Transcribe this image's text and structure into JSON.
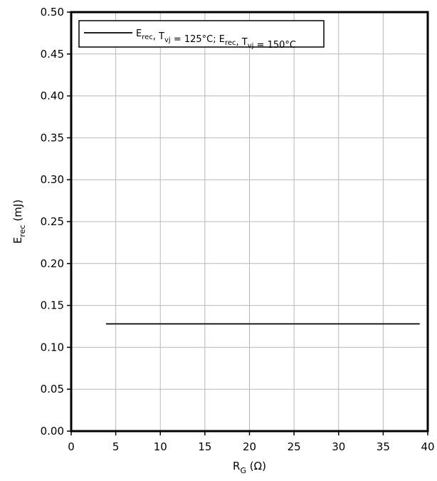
{
  "chart_data": {
    "type": "line",
    "xlabel": {
      "main": "R",
      "sub": "G",
      "rest": " (Ω)"
    },
    "ylabel": {
      "main": "E",
      "sub": "rec",
      "rest": " (mJ)"
    },
    "xlim": [
      0,
      40
    ],
    "ylim": [
      0,
      0.5
    ],
    "x_ticks": [
      0,
      5,
      10,
      15,
      20,
      25,
      30,
      35,
      40
    ],
    "y_ticks": [
      0.0,
      0.05,
      0.1,
      0.15,
      0.2,
      0.25,
      0.3,
      0.35,
      0.4,
      0.45,
      0.5
    ],
    "x_tick_labels": [
      "0",
      "5",
      "10",
      "15",
      "20",
      "25",
      "30",
      "35",
      "40"
    ],
    "y_tick_labels": [
      "0.00",
      "0.05",
      "0.10",
      "0.15",
      "0.20",
      "0.25",
      "0.30",
      "0.35",
      "0.40",
      "0.45",
      "0.50"
    ],
    "grid": true,
    "legend_position": "top-left",
    "series": [
      {
        "legend_parts": [
          {
            "t": "E",
            "sub": "rec"
          },
          {
            "t": ", T",
            "sub": "vj"
          },
          {
            "t": " = 125°C; E",
            "sub": "rec"
          },
          {
            "t": ", T",
            "sub": "vj"
          },
          {
            "t": " = 150°C"
          }
        ],
        "color": "#000000",
        "x": [
          3.9,
          39.1
        ],
        "y": [
          0.128,
          0.128
        ]
      }
    ]
  }
}
